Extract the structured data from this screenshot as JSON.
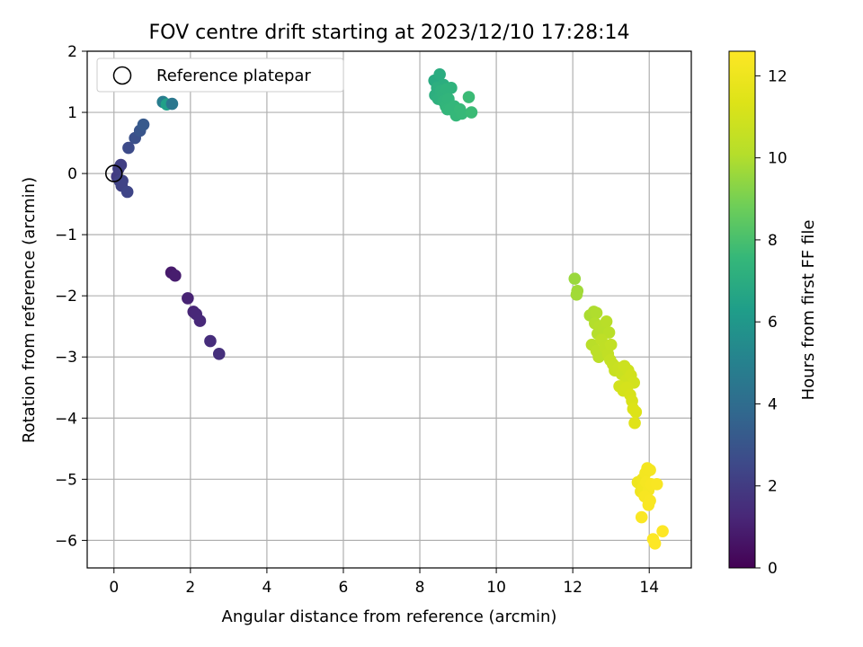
{
  "chart_data": {
    "type": "scatter",
    "title": "FOV centre drift starting at 2023/12/10 17:28:14",
    "xlabel": "Angular distance from reference (arcmin)",
    "ylabel": "Rotation from reference (arcmin)",
    "xlim": [
      -0.7,
      15.1
    ],
    "ylim": [
      -6.45,
      2.0
    ],
    "x_ticks": [
      0,
      2,
      4,
      6,
      8,
      10,
      12,
      14
    ],
    "y_ticks": [
      -6,
      -5,
      -4,
      -3,
      -2,
      -1,
      0,
      1,
      2
    ],
    "x_tick_labels": [
      "0",
      "2",
      "4",
      "6",
      "8",
      "10",
      "12",
      "14"
    ],
    "y_tick_labels": [
      "−6",
      "−5",
      "−4",
      "−3",
      "−2",
      "−1",
      "0",
      "1",
      "2"
    ],
    "grid": true,
    "legend": {
      "placement": "top-left",
      "entries": [
        "Reference platepar"
      ]
    },
    "reference_point": {
      "x": 0,
      "y": 0
    },
    "colorbar": {
      "label": "Hours from first FF file",
      "range": [
        0,
        12.6
      ],
      "ticks": [
        0,
        2,
        4,
        6,
        8,
        10,
        12
      ],
      "tick_labels": [
        "0",
        "2",
        "4",
        "6",
        "8",
        "10",
        "12"
      ],
      "colormap": "viridis"
    },
    "points": [
      {
        "x": 1.5,
        "y": -1.62,
        "t": 0.8
      },
      {
        "x": 1.6,
        "y": -1.67,
        "t": 0.9
      },
      {
        "x": 1.93,
        "y": -2.04,
        "t": 1.1
      },
      {
        "x": 2.08,
        "y": -2.26,
        "t": 1.2
      },
      {
        "x": 2.15,
        "y": -2.3,
        "t": 1.25
      },
      {
        "x": 2.25,
        "y": -2.41,
        "t": 1.3
      },
      {
        "x": 2.52,
        "y": -2.74,
        "t": 1.45
      },
      {
        "x": 2.75,
        "y": -2.95,
        "t": 1.55
      },
      {
        "x": 0.08,
        "y": -0.05,
        "t": 2.0
      },
      {
        "x": 0.12,
        "y": 0.08,
        "t": 2.1
      },
      {
        "x": 0.18,
        "y": 0.14,
        "t": 2.15
      },
      {
        "x": 0.15,
        "y": -0.12,
        "t": 2.2
      },
      {
        "x": 0.2,
        "y": -0.2,
        "t": 2.25
      },
      {
        "x": 0.22,
        "y": -0.12,
        "t": 2.3
      },
      {
        "x": 0.35,
        "y": -0.3,
        "t": 2.35
      },
      {
        "x": 0.38,
        "y": 0.42,
        "t": 2.6
      },
      {
        "x": 0.55,
        "y": 0.58,
        "t": 2.8
      },
      {
        "x": 0.68,
        "y": 0.7,
        "t": 3.0
      },
      {
        "x": 0.77,
        "y": 0.8,
        "t": 3.2
      },
      {
        "x": 1.28,
        "y": 1.17,
        "t": 4.8
      },
      {
        "x": 1.38,
        "y": 1.13,
        "t": 6.4
      },
      {
        "x": 1.52,
        "y": 1.14,
        "t": 4.5
      },
      {
        "x": 8.38,
        "y": 1.52,
        "t": 6.9
      },
      {
        "x": 8.52,
        "y": 1.62,
        "t": 7.0
      },
      {
        "x": 8.62,
        "y": 1.45,
        "t": 7.05
      },
      {
        "x": 8.45,
        "y": 1.4,
        "t": 7.1
      },
      {
        "x": 8.4,
        "y": 1.28,
        "t": 7.1
      },
      {
        "x": 8.55,
        "y": 1.35,
        "t": 7.2
      },
      {
        "x": 8.48,
        "y": 1.22,
        "t": 7.2
      },
      {
        "x": 8.6,
        "y": 1.3,
        "t": 7.25
      },
      {
        "x": 8.7,
        "y": 1.38,
        "t": 7.3
      },
      {
        "x": 8.82,
        "y": 1.4,
        "t": 7.3
      },
      {
        "x": 8.62,
        "y": 1.18,
        "t": 7.35
      },
      {
        "x": 8.68,
        "y": 1.1,
        "t": 7.4
      },
      {
        "x": 8.75,
        "y": 1.22,
        "t": 7.4
      },
      {
        "x": 8.72,
        "y": 1.05,
        "t": 7.45
      },
      {
        "x": 8.8,
        "y": 1.05,
        "t": 7.5
      },
      {
        "x": 8.9,
        "y": 1.1,
        "t": 7.5
      },
      {
        "x": 8.95,
        "y": 0.95,
        "t": 7.55
      },
      {
        "x": 9.05,
        "y": 1.05,
        "t": 7.6
      },
      {
        "x": 9.1,
        "y": 0.98,
        "t": 7.6
      },
      {
        "x": 9.28,
        "y": 1.25,
        "t": 7.7
      },
      {
        "x": 9.35,
        "y": 1.0,
        "t": 7.7
      },
      {
        "x": 12.05,
        "y": -1.72,
        "t": 9.6
      },
      {
        "x": 12.12,
        "y": -1.92,
        "t": 9.7
      },
      {
        "x": 12.1,
        "y": -1.98,
        "t": 9.75
      },
      {
        "x": 12.45,
        "y": -2.32,
        "t": 9.9
      },
      {
        "x": 12.55,
        "y": -2.26,
        "t": 9.95
      },
      {
        "x": 12.62,
        "y": -2.28,
        "t": 10.0
      },
      {
        "x": 12.58,
        "y": -2.45,
        "t": 10.05
      },
      {
        "x": 12.7,
        "y": -2.5,
        "t": 10.1
      },
      {
        "x": 12.65,
        "y": -2.62,
        "t": 10.1
      },
      {
        "x": 12.8,
        "y": -2.55,
        "t": 10.15
      },
      {
        "x": 12.88,
        "y": -2.42,
        "t": 10.2
      },
      {
        "x": 12.95,
        "y": -2.6,
        "t": 10.25
      },
      {
        "x": 12.5,
        "y": -2.8,
        "t": 10.2
      },
      {
        "x": 12.62,
        "y": -2.9,
        "t": 10.3
      },
      {
        "x": 12.68,
        "y": -3.0,
        "t": 10.3
      },
      {
        "x": 12.75,
        "y": -2.72,
        "t": 10.35
      },
      {
        "x": 12.85,
        "y": -2.85,
        "t": 10.4
      },
      {
        "x": 12.92,
        "y": -2.95,
        "t": 10.45
      },
      {
        "x": 13.0,
        "y": -2.8,
        "t": 10.5
      },
      {
        "x": 12.98,
        "y": -3.05,
        "t": 10.55
      },
      {
        "x": 13.05,
        "y": -3.12,
        "t": 10.6
      },
      {
        "x": 13.1,
        "y": -3.22,
        "t": 10.65
      },
      {
        "x": 13.2,
        "y": -3.18,
        "t": 10.7
      },
      {
        "x": 13.28,
        "y": -3.28,
        "t": 10.75
      },
      {
        "x": 13.35,
        "y": -3.15,
        "t": 10.8
      },
      {
        "x": 13.45,
        "y": -3.22,
        "t": 10.85
      },
      {
        "x": 13.4,
        "y": -3.38,
        "t": 10.9
      },
      {
        "x": 13.52,
        "y": -3.3,
        "t": 10.95
      },
      {
        "x": 13.6,
        "y": -3.42,
        "t": 11.0
      },
      {
        "x": 13.22,
        "y": -3.48,
        "t": 11.0
      },
      {
        "x": 13.32,
        "y": -3.55,
        "t": 11.05
      },
      {
        "x": 13.42,
        "y": -3.5,
        "t": 11.1
      },
      {
        "x": 13.5,
        "y": -3.62,
        "t": 11.15
      },
      {
        "x": 13.55,
        "y": -3.72,
        "t": 11.2
      },
      {
        "x": 13.58,
        "y": -3.85,
        "t": 11.3
      },
      {
        "x": 13.65,
        "y": -3.9,
        "t": 11.35
      },
      {
        "x": 13.62,
        "y": -4.08,
        "t": 11.45
      },
      {
        "x": 13.7,
        "y": -5.05,
        "t": 12.0
      },
      {
        "x": 13.78,
        "y": -5.2,
        "t": 12.1
      },
      {
        "x": 13.82,
        "y": -5.0,
        "t": 12.1
      },
      {
        "x": 13.85,
        "y": -5.12,
        "t": 12.15
      },
      {
        "x": 13.9,
        "y": -4.9,
        "t": 12.2
      },
      {
        "x": 13.95,
        "y": -4.82,
        "t": 12.25
      },
      {
        "x": 14.02,
        "y": -4.85,
        "t": 12.25
      },
      {
        "x": 13.92,
        "y": -5.05,
        "t": 12.3
      },
      {
        "x": 13.98,
        "y": -5.18,
        "t": 12.3
      },
      {
        "x": 14.05,
        "y": -5.08,
        "t": 12.35
      },
      {
        "x": 14.2,
        "y": -5.08,
        "t": 12.4
      },
      {
        "x": 13.88,
        "y": -5.28,
        "t": 12.35
      },
      {
        "x": 14.02,
        "y": -5.35,
        "t": 12.4
      },
      {
        "x": 13.98,
        "y": -5.42,
        "t": 12.45
      },
      {
        "x": 13.8,
        "y": -5.62,
        "t": 12.5
      },
      {
        "x": 14.1,
        "y": -5.98,
        "t": 12.55
      },
      {
        "x": 14.15,
        "y": -6.05,
        "t": 12.6
      },
      {
        "x": 14.35,
        "y": -5.85,
        "t": 12.6
      }
    ]
  }
}
